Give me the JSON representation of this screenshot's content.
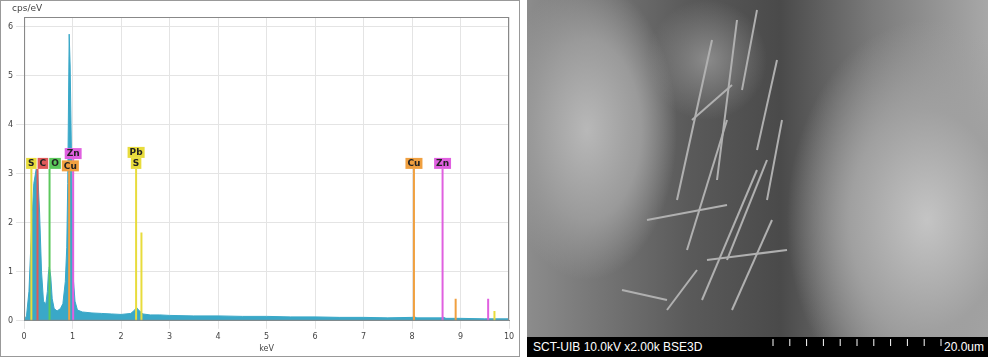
{
  "chart_data": {
    "type": "line",
    "y_label": "cps/eV",
    "x_label": "keV",
    "xlim": [
      0,
      10
    ],
    "xticks": [
      0,
      1,
      2,
      3,
      4,
      5,
      6,
      7,
      8,
      9,
      10
    ],
    "ylim": [
      0,
      6.2
    ],
    "yticks": [
      0,
      1,
      2,
      3,
      4,
      5,
      6
    ],
    "grid": true,
    "legend": false,
    "color": "#3aa8c8",
    "x": [
      0,
      0.05,
      0.1,
      0.15,
      0.2,
      0.25,
      0.28,
      0.32,
      0.36,
      0.4,
      0.45,
      0.48,
      0.5,
      0.52,
      0.55,
      0.58,
      0.62,
      0.68,
      0.75,
      0.8,
      0.85,
      0.88,
      0.9,
      0.93,
      0.95,
      0.98,
      1.0,
      1.02,
      1.05,
      1.1,
      1.2,
      1.4,
      1.6,
      1.8,
      2.0,
      2.2,
      2.28,
      2.32,
      2.36,
      2.45,
      2.6,
      2.8,
      3.0,
      3.5,
      4.0,
      4.5,
      5.0,
      5.5,
      6.0,
      6.5,
      7.0,
      7.5,
      8.0,
      8.05,
      8.1,
      8.6,
      8.65,
      8.7,
      9.0,
      9.5,
      10.0
    ],
    "values": [
      0,
      0.1,
      0.6,
      1.8,
      2.8,
      3.1,
      3.05,
      2.2,
      1.0,
      0.4,
      0.35,
      0.6,
      0.95,
      1.1,
      0.9,
      0.45,
      0.25,
      0.2,
      0.25,
      0.35,
      0.8,
      1.5,
      2.8,
      5.85,
      5.2,
      3.2,
      1.8,
      0.8,
      0.4,
      0.22,
      0.18,
      0.16,
      0.15,
      0.14,
      0.13,
      0.15,
      0.22,
      0.27,
      0.22,
      0.14,
      0.12,
      0.12,
      0.11,
      0.1,
      0.1,
      0.09,
      0.09,
      0.08,
      0.08,
      0.07,
      0.07,
      0.06,
      0.07,
      0.08,
      0.06,
      0.06,
      0.07,
      0.05,
      0.05,
      0.04,
      0.04
    ],
    "element_lines": [
      {
        "labels": [
          "S"
        ],
        "x": 0.15,
        "height": 3.1,
        "color": "#e8dc3c"
      },
      {
        "labels": [
          "C"
        ],
        "x": 0.277,
        "height": 3.1,
        "color": "#e05a5a"
      },
      {
        "labels": [
          "O"
        ],
        "x": 0.525,
        "height": 3.1,
        "color": "#5cc85c"
      },
      {
        "labels": [
          "Cu"
        ],
        "x": 0.93,
        "height": 3.05,
        "color": "#f0a040"
      },
      {
        "labels": [
          "Zn"
        ],
        "x": 1.012,
        "height": 3.3,
        "color": "#e060e0"
      },
      {
        "labels": [
          "Pb",
          "S"
        ],
        "x": 2.31,
        "height": 3.1,
        "color": "#e8dc3c"
      },
      {
        "x": 2.42,
        "height": 1.8,
        "color": "#e8dc3c"
      },
      {
        "labels": [
          "Cu"
        ],
        "x": 8.04,
        "height": 3.1,
        "color": "#f0a040"
      },
      {
        "labels": [
          "Zn"
        ],
        "x": 8.63,
        "height": 3.1,
        "color": "#e060e0"
      },
      {
        "x": 8.9,
        "height": 0.45,
        "color": "#f0a040"
      },
      {
        "x": 9.57,
        "height": 0.45,
        "color": "#e060e0"
      },
      {
        "x": 9.7,
        "height": 0.2,
        "color": "#e8dc3c"
      }
    ]
  },
  "image": {
    "caption": "SCT-UIB 10.0kV x2.00k BSE3D",
    "scale_bar": "20.0um"
  }
}
